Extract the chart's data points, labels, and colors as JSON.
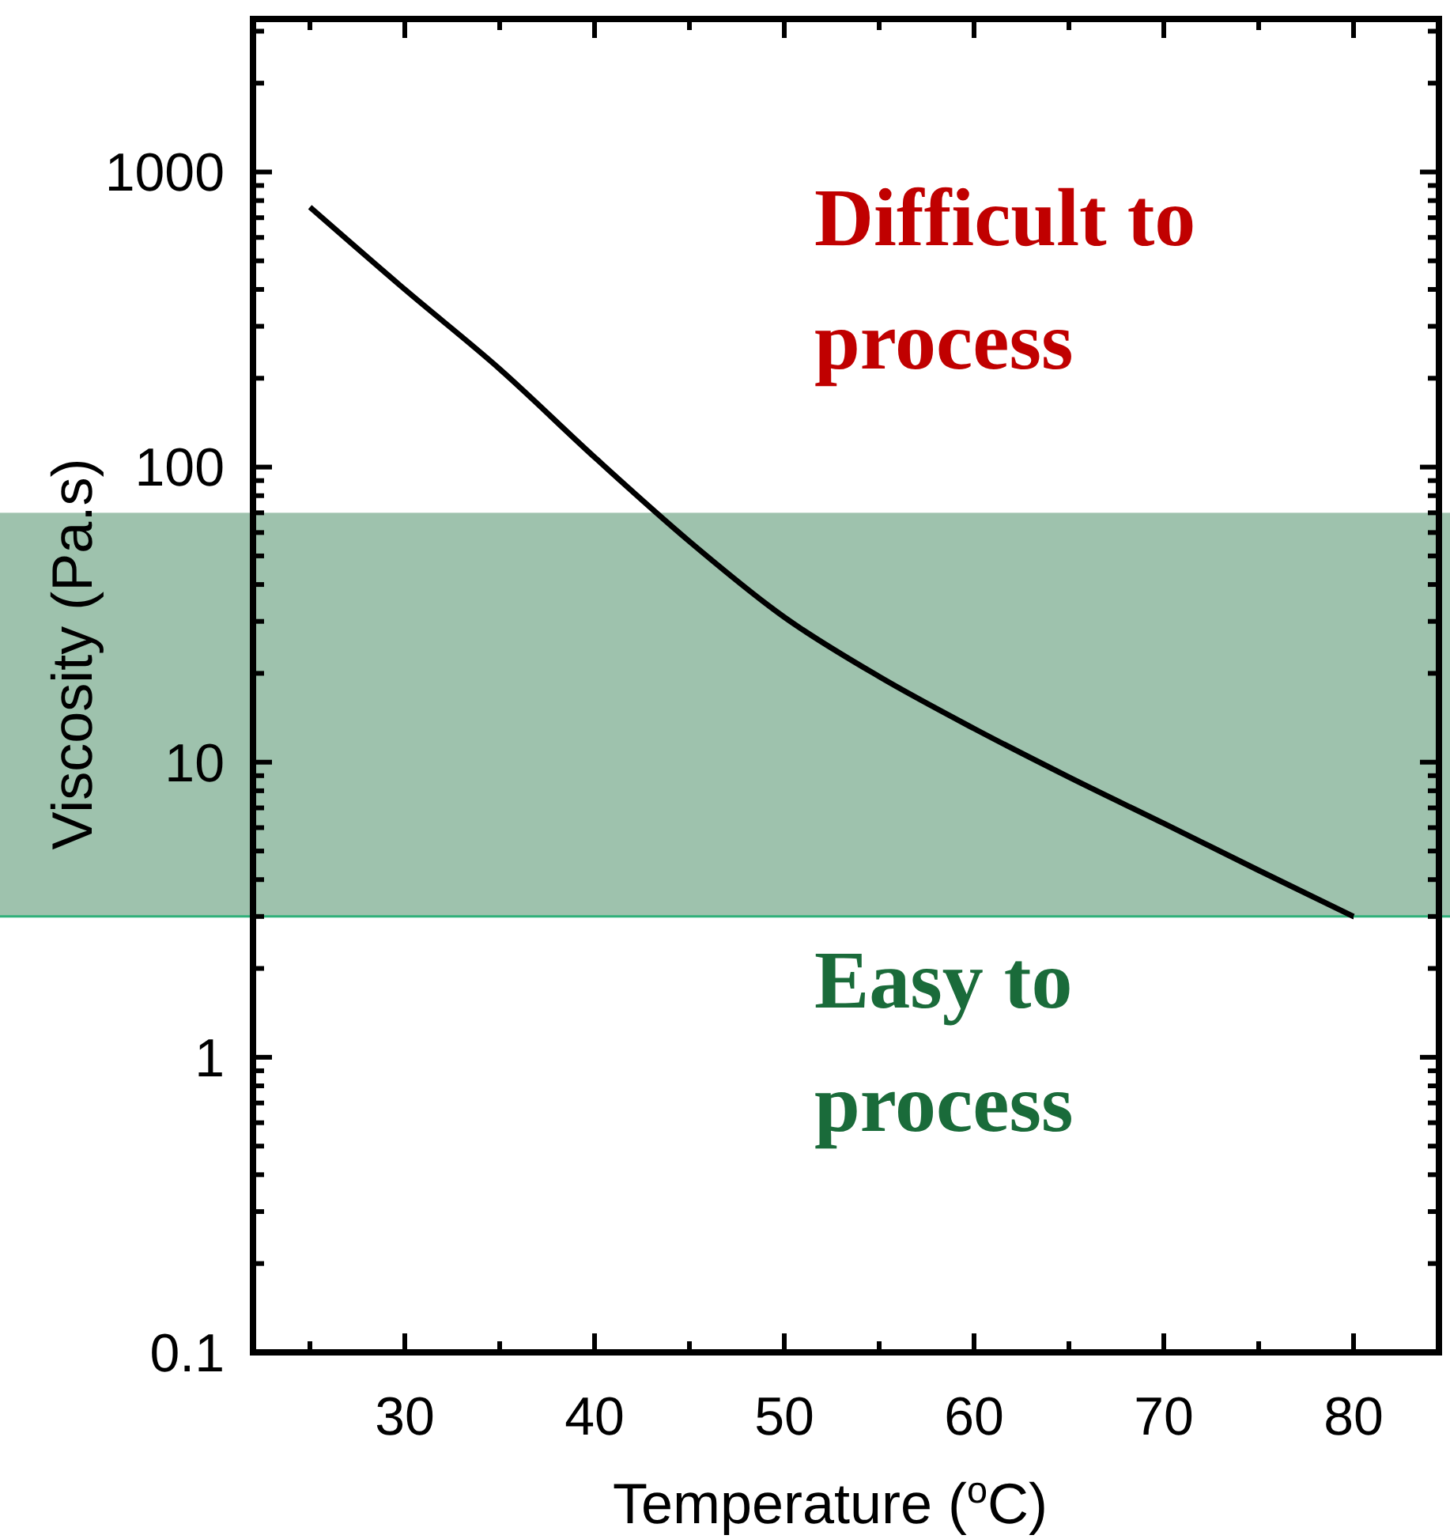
{
  "chart_data": {
    "type": "line",
    "xlabel": "Temperature ($^{o}$C)",
    "ylabel": "Viscosity (Pa.s)",
    "log": "y",
    "grid": false,
    "marker": "none",
    "line_style": "solid",
    "x": [
      25,
      30,
      35,
      40,
      45,
      50,
      55,
      60,
      65,
      70,
      75,
      80
    ],
    "series": [
      {
        "color": "#000000",
        "values": [
          760,
          400,
          215,
          108,
          56,
          31,
          19.5,
          13,
          8.9,
          6.2,
          4.3,
          3.0
        ]
      }
    ],
    "xlim": [
      22,
      84.5
    ],
    "xticks": [
      {
        "value": 25,
        "label": null
      },
      30,
      {
        "value": 35,
        "label": null
      },
      40,
      {
        "value": 45,
        "label": null
      },
      50,
      {
        "value": 55,
        "label": null
      },
      60,
      {
        "value": 65,
        "label": null
      },
      70,
      {
        "value": 75,
        "label": null
      },
      80
    ],
    "ylim": [
      0.1,
      3300
    ],
    "yticks": [
      0.1,
      {
        "value": 0.2,
        "label": null
      },
      {
        "value": 0.3,
        "label": null
      },
      {
        "value": 0.4,
        "label": null
      },
      {
        "value": 0.5,
        "label": null
      },
      {
        "value": 0.6,
        "label": null
      },
      {
        "value": 0.7,
        "label": null
      },
      {
        "value": 0.8,
        "label": null
      },
      {
        "value": 0.9,
        "label": null
      },
      1,
      {
        "value": 2,
        "label": null
      },
      {
        "value": 3,
        "label": null
      },
      {
        "value": 4,
        "label": null
      },
      {
        "value": 5,
        "label": null
      },
      {
        "value": 6,
        "label": null
      },
      {
        "value": 7,
        "label": null
      },
      {
        "value": 8,
        "label": null
      },
      {
        "value": 9,
        "label": null
      },
      10,
      {
        "value": 20,
        "label": null
      },
      {
        "value": 30,
        "label": null
      },
      {
        "value": 40,
        "label": null
      },
      {
        "value": 50,
        "label": null
      },
      {
        "value": 60,
        "label": null
      },
      {
        "value": 70,
        "label": null
      },
      {
        "value": 80,
        "label": null
      },
      {
        "value": 90,
        "label": null
      },
      100,
      {
        "value": 200,
        "label": null
      },
      {
        "value": 300,
        "label": null
      },
      {
        "value": 400,
        "label": null
      },
      {
        "value": 500,
        "label": null
      },
      {
        "value": 600,
        "label": null
      },
      {
        "value": 700,
        "label": null
      },
      {
        "value": 800,
        "label": null
      },
      {
        "value": 900,
        "label": null
      },
      1000,
      {
        "value": 2000,
        "label": null
      },
      {
        "value": 3000,
        "label": null
      }
    ],
    "bands": [
      {
        "axis": "y",
        "from": 3,
        "to": 70,
        "color": "#4e8f6a"
      }
    ],
    "ref_lines": [
      {
        "axis": "y",
        "value": 3,
        "color": "#2fb07a"
      }
    ],
    "annotations": [
      "Difficult to process",
      "Easy to process"
    ]
  }
}
